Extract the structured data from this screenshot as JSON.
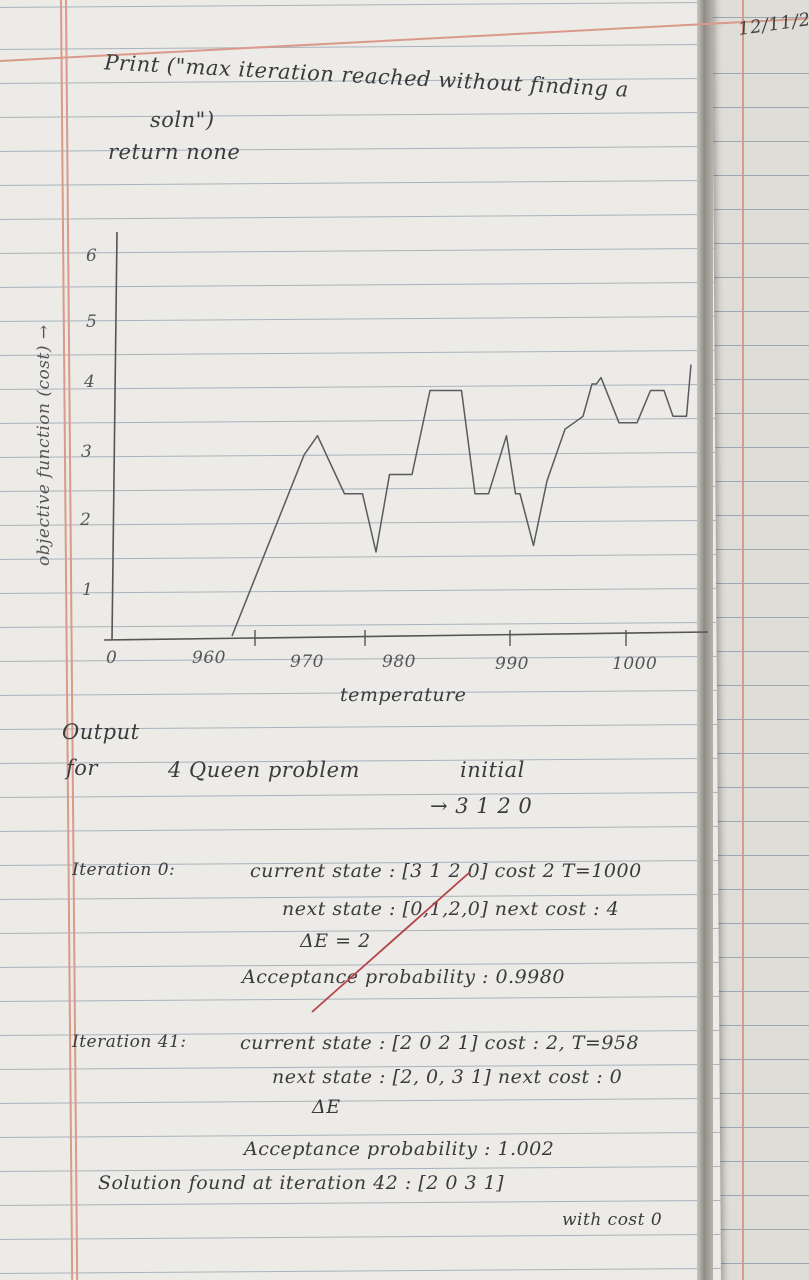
{
  "date": "12/11/2",
  "print_line": {
    "text": "Print (\"max iteration reached without finding a",
    "continuation": "soln\")"
  },
  "return_line": "return none",
  "chart_data": {
    "type": "line",
    "xlabel": "temperature",
    "ylabel": "objective function (cost) →",
    "x_ticks": [
      "0",
      "960",
      "970",
      "980",
      "990",
      "1000"
    ],
    "y_ticks": [
      "1",
      "2",
      "3",
      "4",
      "5",
      "6"
    ],
    "xlim": [
      950,
      1010
    ],
    "ylim": [
      0,
      6.5
    ],
    "series": [
      {
        "x": [
          956,
          962,
          964,
          965.5,
          967.5,
          968.5,
          970.5,
          972,
          973.5,
          976,
          978,
          980.5,
          981.5,
          983,
          984.5,
          986.5,
          987.5,
          988,
          989.5,
          991,
          993,
          994,
          995,
          996,
          996.5,
          997,
          999,
          1001,
          1002.5,
          1004,
          1005,
          1006.5,
          1007
        ],
        "y": [
          0,
          2.1,
          2.8,
          3.1,
          2.5,
          2.2,
          2.2,
          1.3,
          2.5,
          2.5,
          3.8,
          3.8,
          3.8,
          2.2,
          2.2,
          3.1,
          2.2,
          2.2,
          1.4,
          2.4,
          3.2,
          3.3,
          3.4,
          3.9,
          3.9,
          4.0,
          3.3,
          3.3,
          3.8,
          3.8,
          3.4,
          3.4,
          4.2
        ]
      }
    ]
  },
  "output": {
    "heading": "Output",
    "line1": "for",
    "problem": "4 Queen problem",
    "initial_label": "initial",
    "initial_state": "→ 3 1 2 0"
  },
  "iter0": {
    "label": "Iteration 0:",
    "current_state": "current state : [3 1 2 0] cost 2 T=1000",
    "next_state": "next state : [0,1,2,0] next cost : 4",
    "delta": "ΔE = 2",
    "acceptance": "Acceptance probability : 0.9980"
  },
  "iter41": {
    "label": "Iteration 41:",
    "current_state": "current state : [2 0 2 1] cost : 2, T=958",
    "next_state": "next state : [2, 0, 3 1] next cost : 0",
    "delta": "ΔE",
    "acceptance": "Acceptance probability : 1.002"
  },
  "solution": {
    "line": "Solution found at iteration 42 : [2 0 3 1]",
    "cost": "with cost 0"
  }
}
